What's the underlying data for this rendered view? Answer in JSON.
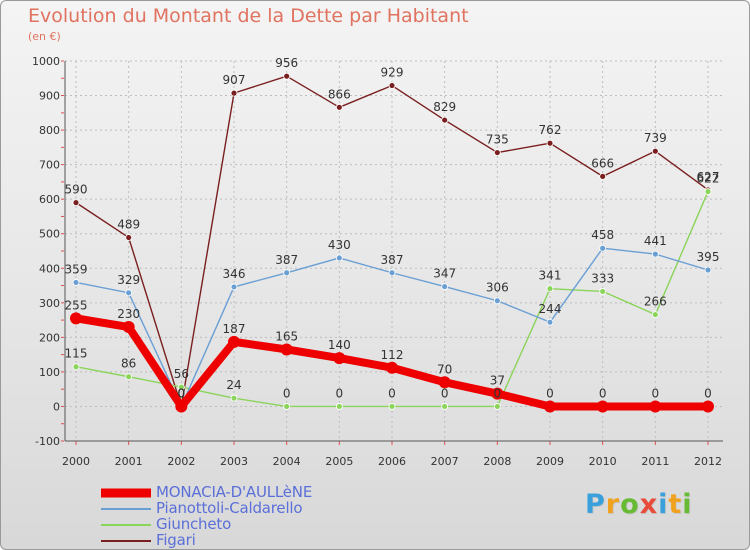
{
  "chart_data": {
    "type": "line",
    "title": "Evolution du Montant de la Dette par Habitant",
    "subtitle": "(en €)",
    "x": [
      "2000",
      "2001",
      "2002",
      "2003",
      "2004",
      "2005",
      "2006",
      "2007",
      "2008",
      "2009",
      "2010",
      "2011",
      "2012"
    ],
    "ylim": [
      -100,
      1000
    ],
    "yticks": [
      -100,
      0,
      100,
      200,
      300,
      400,
      500,
      600,
      700,
      800,
      900,
      1000
    ],
    "grid": true,
    "legend_position": "bottom-left",
    "series": [
      {
        "name": "MONACIA-D'AULLèNE",
        "color": "#ee0000",
        "values": [
          255,
          230,
          0,
          187,
          165,
          140,
          112,
          70,
          37,
          0,
          0,
          0,
          0
        ],
        "labels": [
          "255",
          "230",
          "0",
          "187",
          "165",
          "140",
          "112",
          "70",
          "37",
          "0",
          "0",
          "0",
          "0"
        ]
      },
      {
        "name": "Pianottoli-Caldarello",
        "color": "#6a9fd4",
        "values": [
          359,
          329,
          0,
          346,
          387,
          430,
          387,
          347,
          306,
          244,
          458,
          441,
          395
        ],
        "labels": [
          "359",
          "329",
          "0",
          "346",
          "387",
          "430",
          "387",
          "347",
          "306",
          "244",
          "458",
          "441",
          "395"
        ]
      },
      {
        "name": "Giuncheto",
        "color": "#8bd45a",
        "values": [
          115,
          86,
          56,
          24,
          0,
          0,
          0,
          0,
          0,
          341,
          333,
          266,
          622
        ],
        "labels": [
          "115",
          "86",
          "56",
          "24",
          "0",
          "0",
          "0",
          "0",
          "0",
          "341",
          "333",
          "266",
          "622"
        ]
      },
      {
        "name": "Figari",
        "color": "#7a1f1f",
        "values": [
          590,
          489,
          0,
          907,
          956,
          866,
          929,
          829,
          735,
          762,
          666,
          739,
          627
        ],
        "labels": [
          "590",
          "489",
          "0",
          "907",
          "956",
          "866",
          "929",
          "829",
          "735",
          "762",
          "666",
          "739",
          "627"
        ]
      }
    ]
  },
  "logo": {
    "letters": [
      "P",
      "r",
      "o",
      "x",
      "i",
      "t",
      "i"
    ],
    "colors": [
      "#3aa0dc",
      "#f0a21e",
      "#66bb33",
      "#e84b3a",
      "#3aa0dc",
      "#f0a21e",
      "#66bb33"
    ]
  }
}
